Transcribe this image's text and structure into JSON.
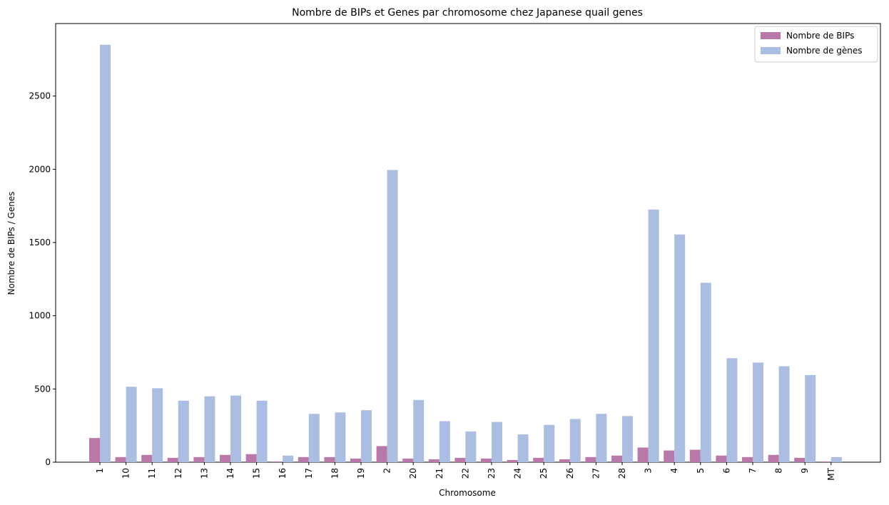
{
  "chart_data": {
    "type": "bar",
    "title": "Nombre de BIPs et Genes par chromosome chez Japanese quail genes",
    "xlabel": "Chromosome",
    "ylabel": "Nombre de BIPs / Genes",
    "ylim": [
      0,
      3000
    ],
    "yticks": [
      0,
      500,
      1000,
      1500,
      2000,
      2500
    ],
    "legend_position": "top-right",
    "categories": [
      "1",
      "10",
      "11",
      "12",
      "13",
      "14",
      "15",
      "16",
      "17",
      "18",
      "19",
      "2",
      "20",
      "21",
      "22",
      "23",
      "24",
      "25",
      "26",
      "27",
      "28",
      "3",
      "4",
      "5",
      "6",
      "7",
      "8",
      "9",
      "MT"
    ],
    "series": [
      {
        "name": "Nombre de BIPs",
        "color": "#b879a8",
        "values": [
          165,
          35,
          50,
          30,
          35,
          50,
          55,
          5,
          35,
          35,
          25,
          110,
          25,
          20,
          30,
          25,
          15,
          30,
          20,
          35,
          45,
          100,
          80,
          85,
          45,
          35,
          50,
          30,
          5
        ]
      },
      {
        "name": "Nombre de gènes",
        "color": "#abbde0",
        "values": [
          2850,
          515,
          505,
          420,
          450,
          455,
          420,
          45,
          330,
          340,
          355,
          1995,
          425,
          280,
          210,
          275,
          190,
          255,
          295,
          330,
          315,
          1725,
          1555,
          1225,
          710,
          680,
          655,
          595,
          35
        ]
      }
    ]
  }
}
